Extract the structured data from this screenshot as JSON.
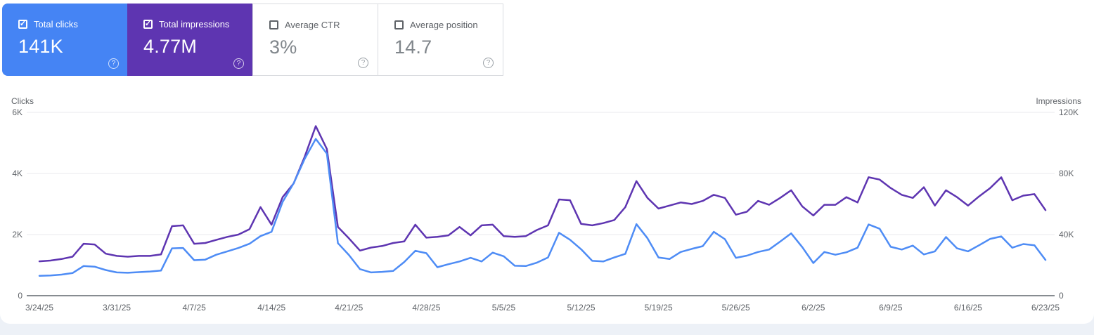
{
  "cards": [
    {
      "label": "Total clicks",
      "value": "141K",
      "checked": true,
      "bg": "#4584f4"
    },
    {
      "label": "Total impressions",
      "value": "4.77M",
      "checked": true,
      "bg": "#5e35b1"
    },
    {
      "label": "Average CTR",
      "value": "3%",
      "checked": false
    },
    {
      "label": "Average position",
      "value": "14.7",
      "checked": false
    }
  ],
  "icons": {
    "check": "✓",
    "help": "?"
  },
  "chart_data": {
    "type": "line",
    "x_tick_labels": [
      "3/24/25",
      "3/31/25",
      "4/7/25",
      "4/14/25",
      "4/21/25",
      "4/28/25",
      "5/5/25",
      "5/12/25",
      "5/19/25",
      "5/26/25",
      "6/2/25",
      "6/9/25",
      "6/16/25",
      "6/23/25"
    ],
    "x_tick_interval_days": 7,
    "date_range": {
      "start": "3/24/25",
      "end": "6/23/25",
      "points": 92
    },
    "grid": true,
    "legend_position": "none",
    "left_axis": {
      "title": "Clicks",
      "max": 6000,
      "ticks": [
        {
          "label": "0",
          "value": 0
        },
        {
          "label": "2K",
          "value": 2000
        },
        {
          "label": "4K",
          "value": 4000
        },
        {
          "label": "6K",
          "value": 6000
        }
      ]
    },
    "right_axis": {
      "title": "Impressions",
      "max": 120000,
      "ticks": [
        {
          "label": "0",
          "value": 0
        },
        {
          "label": "40K",
          "value": 40000
        },
        {
          "label": "80K",
          "value": 80000
        },
        {
          "label": "120K",
          "value": 120000
        }
      ]
    },
    "series": [
      {
        "name": "Clicks",
        "axis": "left",
        "color": "#4e8cf5",
        "values": [
          650,
          660,
          690,
          740,
          970,
          950,
          840,
          760,
          750,
          770,
          790,
          820,
          1550,
          1560,
          1160,
          1180,
          1340,
          1450,
          1560,
          1700,
          1950,
          2090,
          3070,
          3680,
          4480,
          5130,
          4650,
          1720,
          1330,
          870,
          760,
          780,
          810,
          1100,
          1470,
          1390,
          930,
          1030,
          1120,
          1240,
          1120,
          1410,
          1290,
          980,
          970,
          1080,
          1250,
          2060,
          1830,
          1520,
          1140,
          1120,
          1250,
          1370,
          2340,
          1880,
          1250,
          1200,
          1430,
          1530,
          1620,
          2090,
          1850,
          1240,
          1310,
          1430,
          1510,
          1770,
          2040,
          1590,
          1070,
          1430,
          1340,
          1420,
          1570,
          2330,
          2190,
          1600,
          1510,
          1640,
          1350,
          1450,
          1920,
          1550,
          1450,
          1650,
          1860,
          1940,
          1570,
          1690,
          1650,
          1170
        ]
      },
      {
        "name": "Impressions",
        "axis": "right",
        "color": "#5e35b1",
        "values": [
          22500,
          23000,
          24000,
          25500,
          34000,
          33500,
          27500,
          26000,
          25500,
          26000,
          26000,
          27000,
          45500,
          46000,
          34000,
          34500,
          36500,
          38500,
          40000,
          43500,
          58000,
          46500,
          64500,
          73500,
          91000,
          111000,
          96000,
          45000,
          37500,
          29500,
          31500,
          32500,
          34500,
          35500,
          46500,
          38000,
          38500,
          39500,
          45000,
          39500,
          46000,
          46500,
          39000,
          38500,
          39000,
          43000,
          46000,
          63000,
          62500,
          47000,
          46000,
          47500,
          49500,
          58000,
          75000,
          64000,
          57000,
          59000,
          61000,
          60000,
          62000,
          66000,
          64000,
          53000,
          55000,
          62000,
          59500,
          64000,
          69000,
          58500,
          52500,
          59500,
          59500,
          64500,
          61000,
          77500,
          76000,
          70500,
          66000,
          64000,
          71000,
          59000,
          69000,
          64500,
          59000,
          65000,
          70500,
          77500,
          62500,
          65500,
          66500,
          56000
        ]
      }
    ]
  }
}
